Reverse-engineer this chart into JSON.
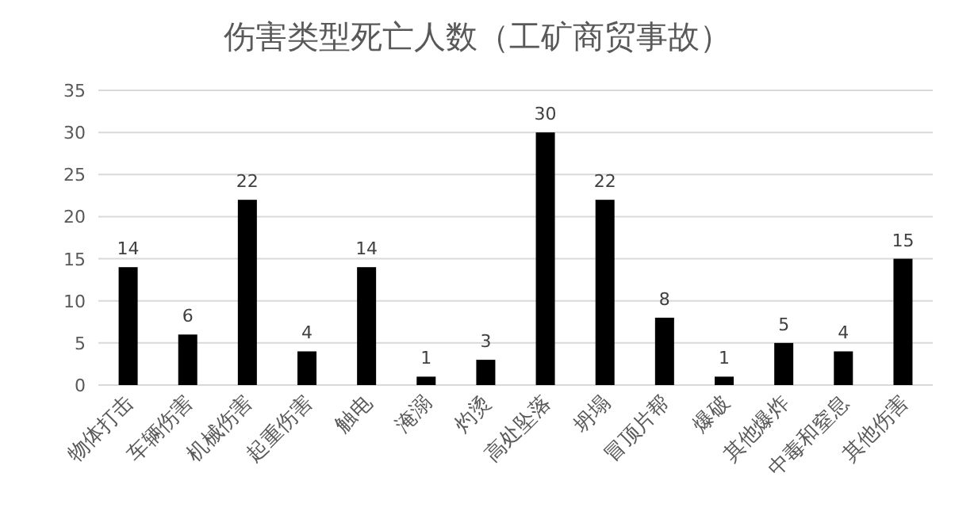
{
  "chart_data": {
    "type": "bar",
    "title": "伤害类型死亡人数（工矿商贸事故）",
    "categories": [
      "物体打击",
      "车辆伤害",
      "机械伤害",
      "起重伤害",
      "触电",
      "淹溺",
      "灼烫",
      "高处坠落",
      "坍塌",
      "冒顶片帮",
      "爆破",
      "其他爆炸",
      "中毒和窒息",
      "其他伤害"
    ],
    "values": [
      14,
      6,
      22,
      4,
      14,
      1,
      3,
      30,
      22,
      8,
      1,
      5,
      4,
      15
    ],
    "color": "#000000",
    "ylim": [
      0,
      35
    ],
    "yticks": [
      0,
      5,
      10,
      15,
      20,
      25,
      30,
      35
    ],
    "grid": "y",
    "data_labels": true
  }
}
